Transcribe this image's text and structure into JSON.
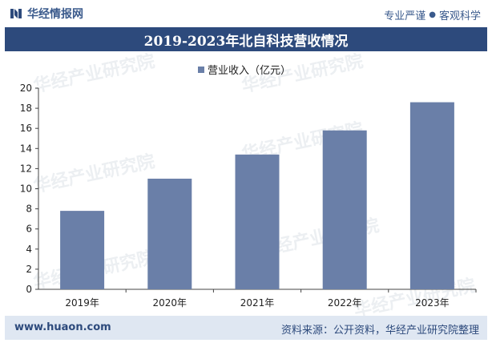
{
  "header": {
    "brand": "华经情报网",
    "tagline_left": "专业严谨",
    "tagline_dot": "●",
    "tagline_right": "客观科学"
  },
  "watermark": {
    "text_cn": "华经产业研究院",
    "text_url": "www.huaon.com"
  },
  "footer": {
    "url": "www.huaon.com",
    "source": "资料来源：公开资料，华经产业研究院整理"
  },
  "colors": {
    "bar": "#6a7fa8",
    "title_bg": "#2d4a7c",
    "footer_bg": "#dfe7f2",
    "axis": "#444444"
  },
  "chart_data": {
    "type": "bar",
    "title": "2019-2023年北自科技营收情况",
    "categories": [
      "2019年",
      "2020年",
      "2021年",
      "2022年",
      "2023年"
    ],
    "series": [
      {
        "name": "营业收入（亿元）",
        "values": [
          7.8,
          11.0,
          13.4,
          15.8,
          18.6
        ]
      }
    ],
    "yticks": [
      0,
      2,
      4,
      6,
      8,
      10,
      12,
      14,
      16,
      18,
      20
    ],
    "ylim": [
      0,
      20
    ],
    "legend": "top-center",
    "grid": false
  }
}
